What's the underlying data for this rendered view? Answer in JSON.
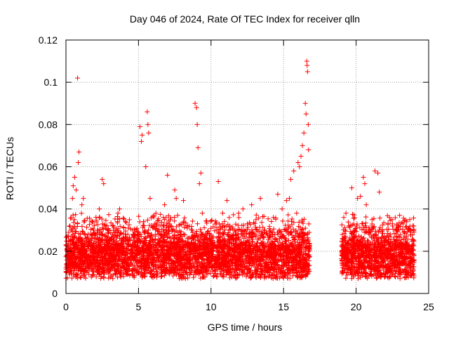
{
  "chart_data": {
    "type": "scatter",
    "title": "Day 046 of 2024, Rate Of TEC Index for receiver qlln",
    "xlabel": "GPS time / hours",
    "ylabel": "ROTI / TECUs",
    "xlim": [
      0,
      25
    ],
    "ylim": [
      0,
      0.12
    ],
    "xticks": [
      0,
      5,
      10,
      15,
      20,
      25
    ],
    "xtick_labels": [
      "0",
      "5",
      "10",
      "15",
      "20",
      "25"
    ],
    "yticks": [
      0,
      0.02,
      0.04,
      0.06,
      0.08,
      0.1,
      0.12
    ],
    "ytick_labels": [
      "0",
      "0.02",
      "0.04",
      "0.06",
      "0.08",
      "0.1",
      "0.12"
    ],
    "grid": true,
    "marker": "+",
    "series_color": "#ff0000",
    "data_gap_hours": [
      16.8,
      19.0
    ],
    "series": [
      {
        "name": "ROTI",
        "x": [
          0.1,
          0.2,
          0.35,
          0.45,
          0.5,
          0.6,
          0.7,
          0.8,
          0.85,
          0.9,
          1.0,
          1.1,
          1.2,
          1.3,
          1.4,
          1.5,
          1.7,
          1.9,
          2.1,
          2.3,
          2.5,
          2.6,
          2.8,
          3.0,
          3.2,
          3.5,
          3.7,
          3.9,
          4.1,
          4.3,
          4.6,
          4.9,
          5.1,
          5.2,
          5.25,
          5.35,
          5.5,
          5.6,
          5.65,
          5.7,
          5.8,
          6.0,
          6.2,
          6.5,
          6.8,
          7.0,
          7.2,
          7.5,
          7.6,
          7.7,
          7.9,
          8.1,
          8.4,
          8.7,
          8.9,
          9.0,
          9.05,
          9.1,
          9.2,
          9.3,
          9.4,
          9.6,
          9.9,
          10.2,
          10.5,
          10.8,
          11.1,
          11.3,
          11.6,
          11.9,
          12.2,
          12.5,
          12.8,
          13.1,
          13.4,
          13.7,
          14.0,
          14.3,
          14.6,
          14.9,
          15.2,
          15.4,
          15.5,
          15.7,
          15.9,
          16.0,
          16.1,
          16.2,
          16.3,
          16.4,
          16.5,
          16.55,
          16.6,
          16.62,
          16.65,
          16.7,
          16.72,
          19.1,
          19.3,
          19.5,
          19.7,
          19.9,
          20.1,
          20.3,
          20.5,
          20.6,
          20.7,
          20.9,
          21.1,
          21.3,
          21.5,
          21.6,
          21.8,
          22.0,
          22.3,
          22.5,
          22.8,
          23.0,
          23.3,
          23.5,
          23.7,
          23.9
        ],
        "y": [
          0.017,
          0.022,
          0.03,
          0.045,
          0.051,
          0.055,
          0.049,
          0.102,
          0.062,
          0.067,
          0.028,
          0.042,
          0.045,
          0.024,
          0.02,
          0.026,
          0.018,
          0.03,
          0.022,
          0.04,
          0.054,
          0.052,
          0.02,
          0.025,
          0.032,
          0.023,
          0.04,
          0.019,
          0.034,
          0.021,
          0.03,
          0.026,
          0.079,
          0.072,
          0.075,
          0.034,
          0.06,
          0.086,
          0.08,
          0.076,
          0.045,
          0.031,
          0.038,
          0.024,
          0.042,
          0.056,
          0.035,
          0.049,
          0.045,
          0.037,
          0.028,
          0.044,
          0.032,
          0.03,
          0.09,
          0.088,
          0.08,
          0.069,
          0.052,
          0.057,
          0.038,
          0.028,
          0.026,
          0.022,
          0.053,
          0.038,
          0.044,
          0.032,
          0.03,
          0.038,
          0.04,
          0.033,
          0.042,
          0.035,
          0.045,
          0.03,
          0.027,
          0.036,
          0.047,
          0.04,
          0.044,
          0.045,
          0.054,
          0.058,
          0.038,
          0.062,
          0.06,
          0.065,
          0.07,
          0.076,
          0.09,
          0.085,
          0.11,
          0.108,
          0.105,
          0.08,
          0.068,
          0.026,
          0.038,
          0.032,
          0.05,
          0.03,
          0.045,
          0.046,
          0.055,
          0.052,
          0.042,
          0.028,
          0.035,
          0.058,
          0.057,
          0.048,
          0.03,
          0.025,
          0.036,
          0.033,
          0.031,
          0.037,
          0.029,
          0.024,
          0.035,
          0.032
        ]
      }
    ]
  }
}
